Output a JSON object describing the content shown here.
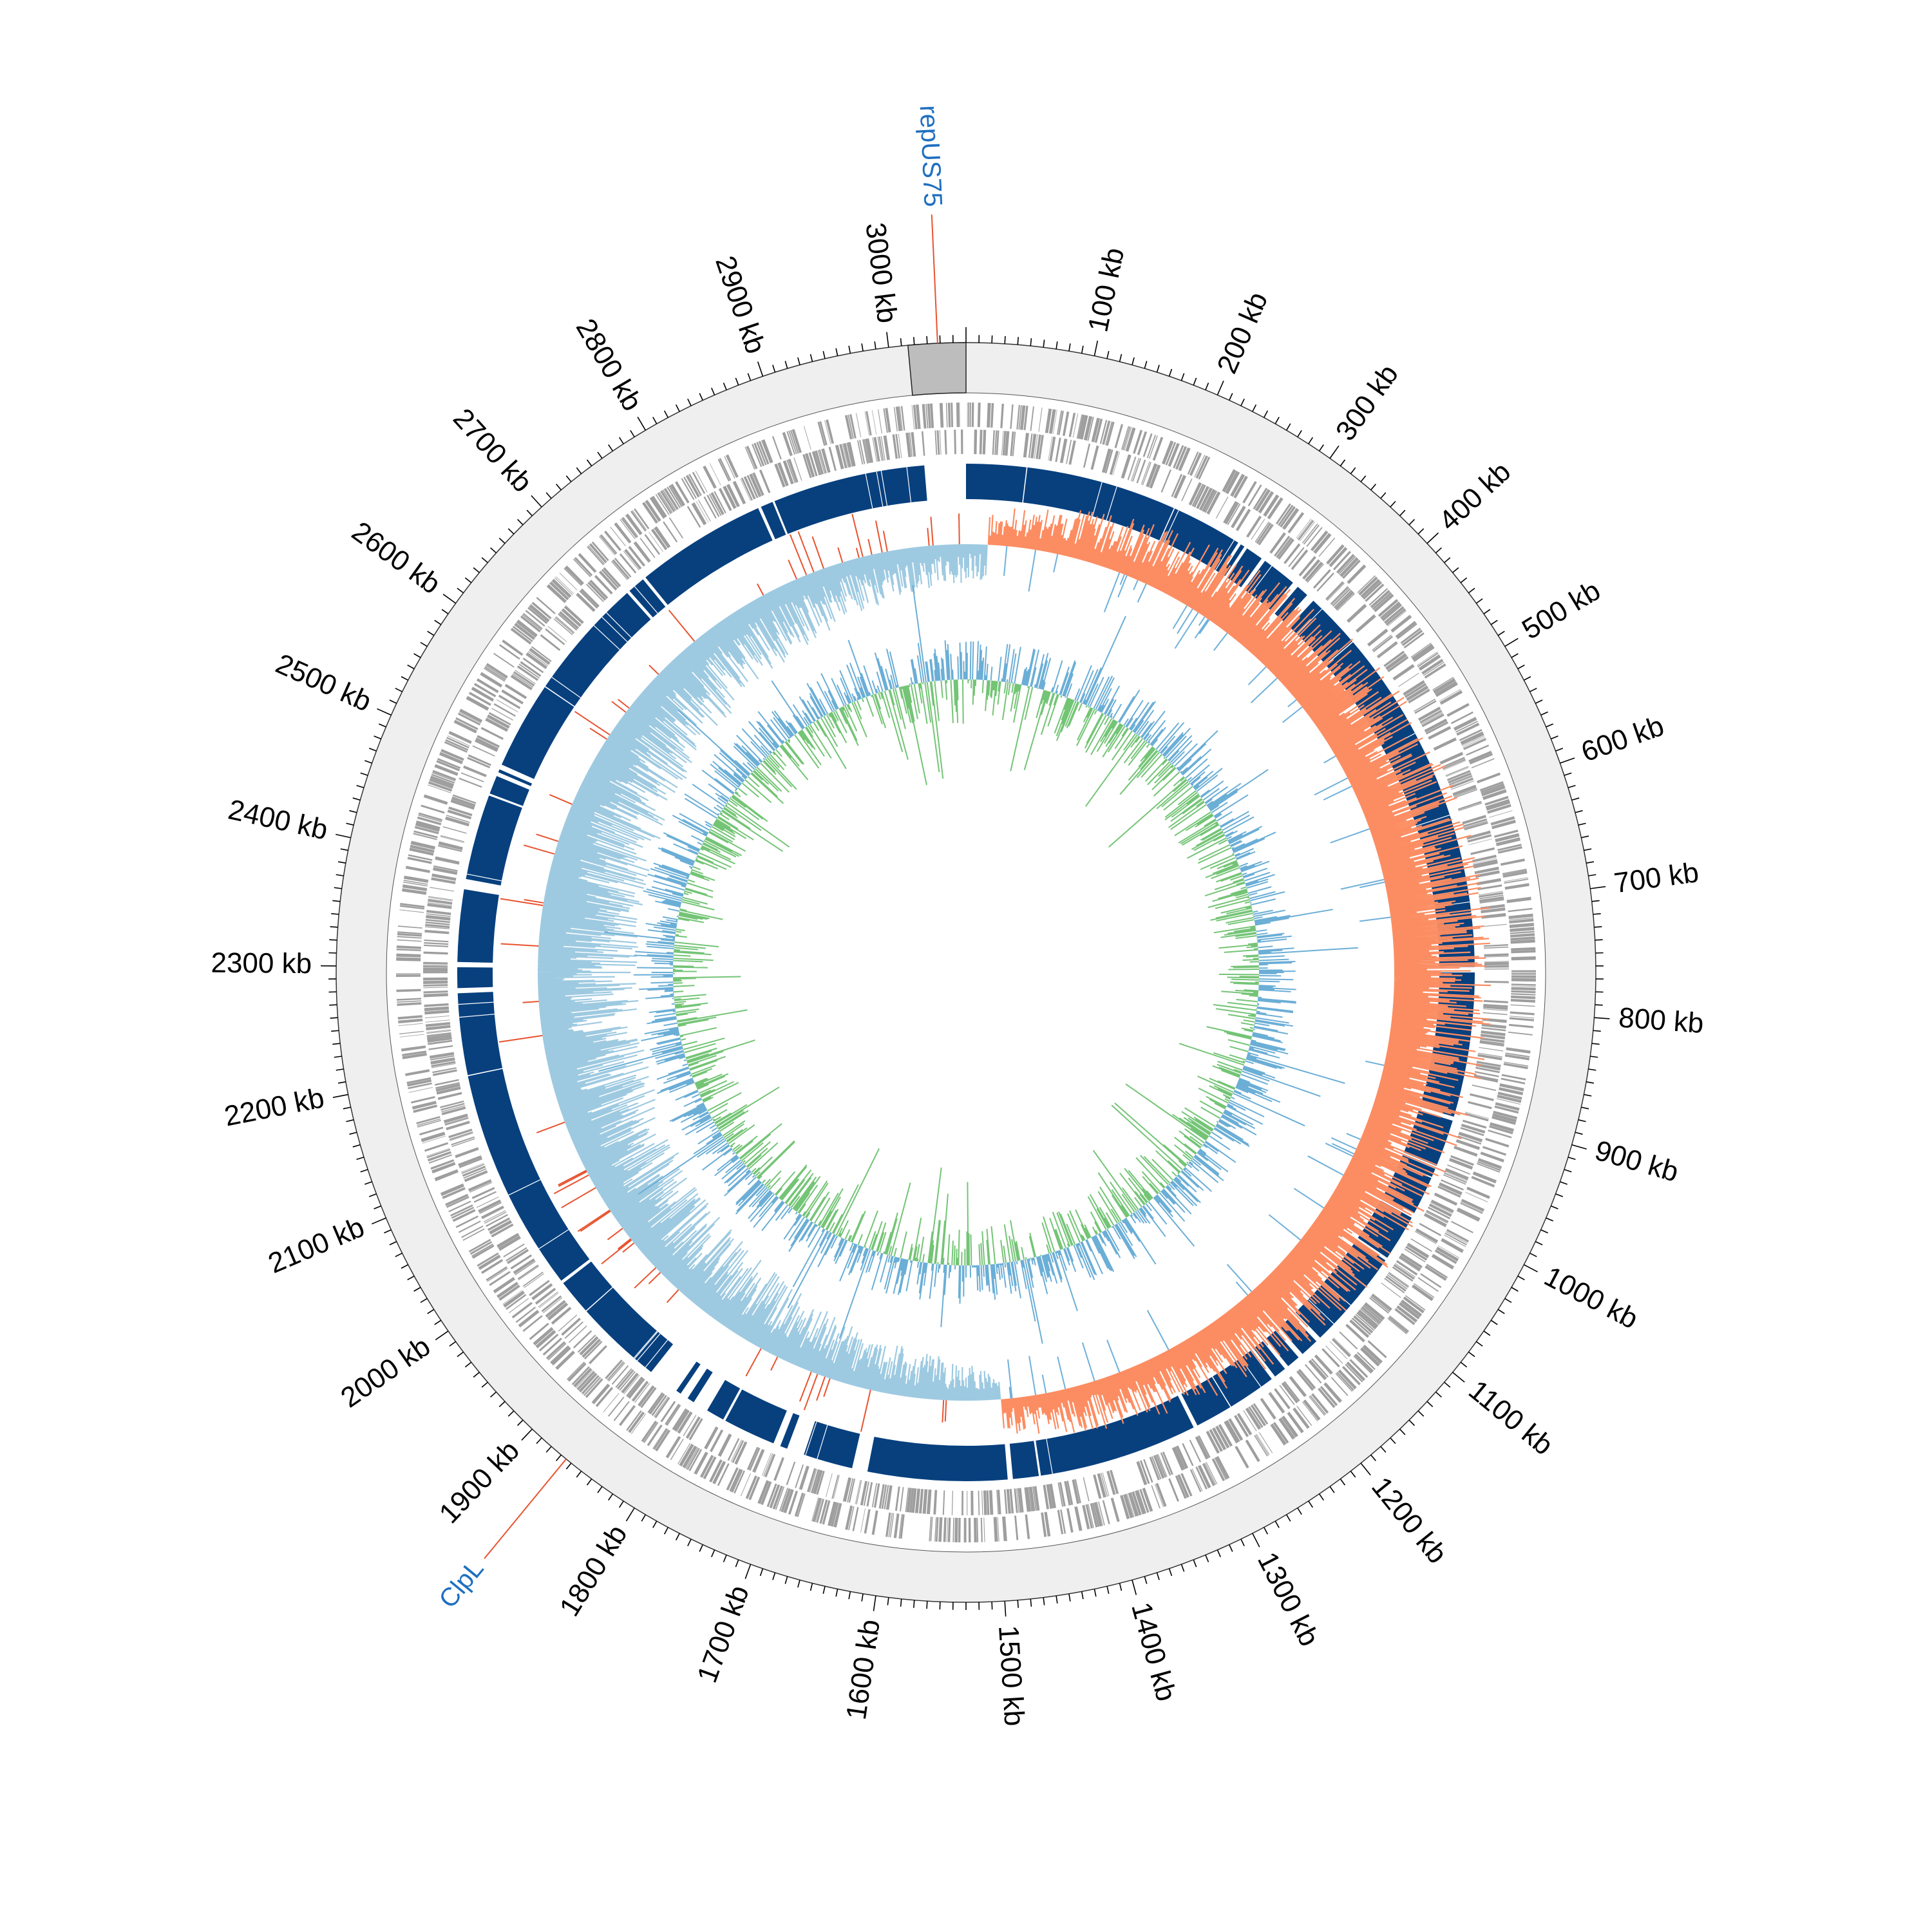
{
  "genome": {
    "length_kb": 3060,
    "highlight_region_kb": [
      3015,
      3060
    ]
  },
  "scale": {
    "unit": "kb",
    "labeled_ticks_kb": [
      100,
      200,
      300,
      400,
      500,
      600,
      700,
      800,
      900,
      1000,
      1100,
      1200,
      1300,
      1400,
      1500,
      1600,
      1700,
      1800,
      1900,
      2000,
      2100,
      2200,
      2300,
      2400,
      2500,
      2600,
      2700,
      2800,
      2900,
      3000
    ],
    "minor_tick_step_kb": 10
  },
  "annotations": [
    {
      "name": "repUS75",
      "position_kb": 3038
    },
    {
      "name": "ClpL",
      "position_kb": 1865
    }
  ],
  "tracks": {
    "homology_blocks_kb": [
      [
        0,
        58
      ],
      [
        59,
        205
      ],
      [
        206,
        275
      ],
      [
        278,
        282
      ],
      [
        285,
        302
      ],
      [
        306,
        340
      ],
      [
        346,
        358
      ],
      [
        366,
        420
      ],
      [
        421,
        760
      ],
      [
        765,
        905
      ],
      [
        909,
        955
      ],
      [
        958,
        1005
      ],
      [
        1010,
        1055
      ],
      [
        1058,
        1155
      ],
      [
        1160,
        1178
      ],
      [
        1183,
        1196
      ],
      [
        1200,
        1212
      ],
      [
        1216,
        1263
      ],
      [
        1264,
        1300
      ],
      [
        1304,
        1458
      ],
      [
        1460,
        1485
      ],
      [
        1490,
        1625
      ],
      [
        1640,
        1688
      ],
      [
        1705,
        1712
      ],
      [
        1719,
        1770
      ],
      [
        1772,
        1790
      ],
      [
        1805,
        1812
      ],
      [
        1820,
        1825
      ],
      [
        1855,
        1940
      ],
      [
        1941,
        1975
      ],
      [
        1978,
        2195
      ],
      [
        2196,
        2275
      ],
      [
        2280,
        2300
      ],
      [
        2305,
        2375
      ],
      [
        2385,
        2468
      ],
      [
        2470,
        2488
      ],
      [
        2492,
        2495
      ],
      [
        2500,
        2585
      ],
      [
        2586,
        2705
      ],
      [
        2708,
        2725
      ],
      [
        2728,
        2855
      ],
      [
        2858,
        2870
      ],
      [
        2872,
        3020
      ]
    ]
  },
  "colors": {
    "outer_ring": "#efefef",
    "highlight_box": "#bdbdbd",
    "genes": "#9e9e9e",
    "blocks": "#08407e",
    "gc_skew_positive": "#fc8d62",
    "gc_skew_negative": "#9ecae1",
    "gc_skew_spike_pos": "#e8532f",
    "gc_skew_spike_neg": "#6fb0da",
    "gc_content_positive": "#74c476",
    "gc_content_negative": "#6baed6",
    "annotation_line": "#e8532f",
    "annotation_text": "#1f6fbf"
  }
}
